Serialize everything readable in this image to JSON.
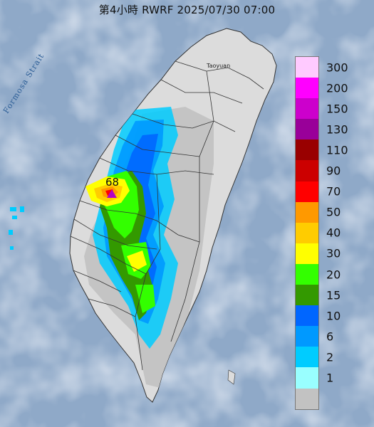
{
  "title": "第4小時 RWRF 2025/07/30 07:00",
  "sea_label": "Formosa Strait",
  "place_labels": {
    "taoyuan": "Taoyuan"
  },
  "peak": {
    "value": "68",
    "marker_color": "#b400c8"
  },
  "legend": [
    {
      "label": "300",
      "color": "#ffcaff"
    },
    {
      "label": "200",
      "color": "#ff00ff"
    },
    {
      "label": "150",
      "color": "#cc00cc"
    },
    {
      "label": "130",
      "color": "#990099"
    },
    {
      "label": "110",
      "color": "#990000"
    },
    {
      "label": "90",
      "color": "#cc0000"
    },
    {
      "label": "70",
      "color": "#ff0000"
    },
    {
      "label": "50",
      "color": "#ff9900"
    },
    {
      "label": "40",
      "color": "#ffcc00"
    },
    {
      "label": "30",
      "color": "#ffff00"
    },
    {
      "label": "20",
      "color": "#33ff00"
    },
    {
      "label": "15",
      "color": "#339900"
    },
    {
      "label": "10",
      "color": "#0066ff"
    },
    {
      "label": "6",
      "color": "#0099ff"
    },
    {
      "label": "2",
      "color": "#00ccff"
    },
    {
      "label": "1",
      "color": "#99ffff"
    },
    {
      "label": "",
      "color": "#c2c2c2"
    }
  ],
  "colors": {
    "sea": "#8fa9c8",
    "land": "#dcdcdc",
    "border": "#333333"
  }
}
